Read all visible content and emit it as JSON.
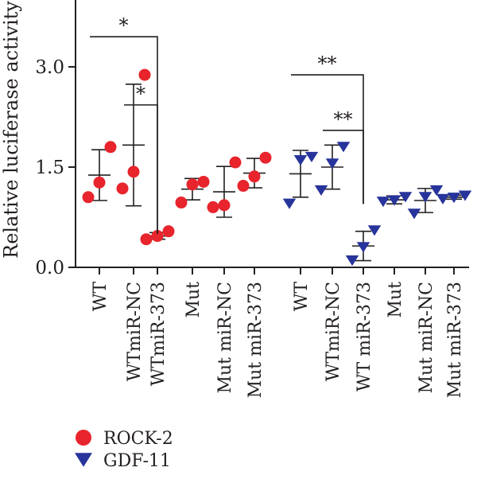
{
  "chart_data": {
    "type": "scatter",
    "ylabel": "Relative luciferase activity",
    "xlabel": "",
    "ylim": [
      0,
      3.0
    ],
    "yticks": [
      0.0,
      1.5,
      3.0
    ],
    "ytick_labels": [
      "0.0",
      "1.5",
      "3.0"
    ],
    "legend": {
      "placement": "bottom-left",
      "entries": [
        {
          "name": "ROCK-2",
          "marker": "circle",
          "color": "#e8242c"
        },
        {
          "name": "GDF-11",
          "marker": "triangle-down",
          "color": "#27349b"
        }
      ]
    },
    "groups": [
      {
        "label": "WT",
        "series": "ROCK-2",
        "points": [
          1.05,
          1.27,
          1.8
        ],
        "mean": 1.38,
        "sd": 0.38
      },
      {
        "label": "WTmiR-NC",
        "series": "ROCK-2",
        "points": [
          1.18,
          1.43,
          2.88
        ],
        "mean": 1.83,
        "sd": 0.91
      },
      {
        "label": "WTmiR-373",
        "series": "ROCK-2",
        "points": [
          0.42,
          0.47,
          0.54
        ],
        "mean": 0.47,
        "sd": 0.05
      },
      {
        "label": "Mut",
        "series": "ROCK-2",
        "points": [
          0.97,
          1.24,
          1.28
        ],
        "mean": 1.17,
        "sd": 0.16
      },
      {
        "label": "Mut miR-NC",
        "series": "ROCK-2",
        "points": [
          0.9,
          0.93,
          1.57
        ],
        "mean": 1.13,
        "sd": 0.38
      },
      {
        "label": "Mut miR-373",
        "series": "ROCK-2",
        "points": [
          1.22,
          1.36,
          1.64
        ],
        "mean": 1.41,
        "sd": 0.22
      },
      {
        "label": "WT",
        "series": "GDF-11",
        "points": [
          0.95,
          1.6,
          1.65
        ],
        "mean": 1.4,
        "sd": 0.35
      },
      {
        "label": "WTmiR-NC",
        "series": "GDF-11",
        "points": [
          1.15,
          1.55,
          1.8
        ],
        "mean": 1.5,
        "sd": 0.33
      },
      {
        "label": "WT miR-373",
        "series": "GDF-11",
        "points": [
          0.1,
          0.3,
          0.55
        ],
        "mean": 0.32,
        "sd": 0.22
      },
      {
        "label": "Mut",
        "series": "GDF-11",
        "points": [
          0.98,
          1.0,
          1.05
        ],
        "mean": 1.01,
        "sd": 0.06
      },
      {
        "label": "Mut miR-NC",
        "series": "GDF-11",
        "points": [
          0.8,
          1.05,
          1.15
        ],
        "mean": 1.0,
        "sd": 0.18
      },
      {
        "label": "Mut miR-373",
        "series": "GDF-11",
        "points": [
          1.02,
          1.04,
          1.07
        ],
        "mean": 1.05,
        "sd": 0.03
      }
    ],
    "annotations": [
      {
        "text": "*",
        "from": 0,
        "to": 2,
        "y": 3.45
      },
      {
        "text": "*",
        "from": 1,
        "to": 2,
        "y": 2.43
      },
      {
        "text": "**",
        "from": 6,
        "to": 8,
        "y": 2.88
      },
      {
        "text": "**",
        "from": 7,
        "to": 8,
        "y": 2.05
      }
    ]
  }
}
